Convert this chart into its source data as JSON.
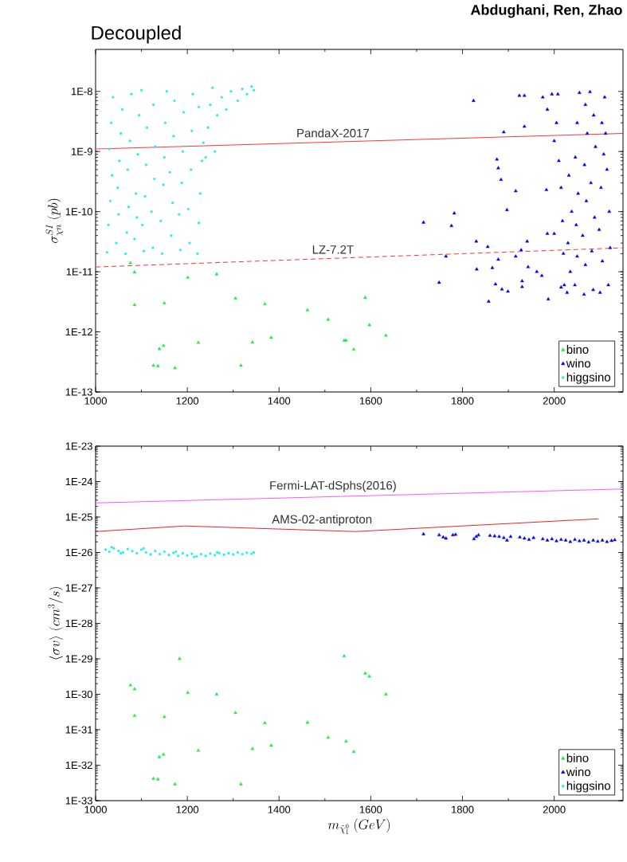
{
  "chart_data": [
    {
      "type": "scatter",
      "title": "Decoupled",
      "annotations": [
        "Abdughani, Ren, Zhao"
      ],
      "ylabel": "\\sigma^{SI}_{\\chi n}\\ (pb)",
      "xlim": [
        1000,
        2150
      ],
      "ylim": [
        1e-13,
        5e-08
      ],
      "log": "y",
      "legend": "bottom right",
      "xticks": [
        1000,
        1200,
        1400,
        1600,
        1800,
        2000
      ],
      "yticks": [
        {
          "value": 1e-13,
          "label": "1E-13"
        },
        {
          "value": 1e-12,
          "label": "1E-12"
        },
        {
          "value": 1e-11,
          "label": "1E-11"
        },
        {
          "value": 1e-10,
          "label": "1E-10"
        },
        {
          "value": 1e-09,
          "label": "1E-9"
        },
        {
          "value": 1e-08,
          "label": "1E-8"
        }
      ],
      "series": [
        {
          "name": "bino",
          "type": "scatter",
          "marker": "triangle",
          "color": "#22ee44",
          "x": [
            1076,
            1085,
            1085,
            1150,
            1201,
            1264,
            1305,
            1369,
            1462,
            1507,
            1588,
            1597,
            1633,
            1139,
            1148,
            1224,
            1342,
            1383,
            1542,
            1546,
            1563,
            1126,
            1136,
            1173,
            1317
          ],
          "values": [
            1.4e-11,
            9.8e-12,
            2.8e-12,
            3e-12,
            8e-12,
            9.1e-12,
            3.6e-12,
            2.9e-12,
            2.3e-12,
            1.6e-12,
            3.7e-12,
            1.3e-12,
            8.7e-13,
            5.2e-13,
            5.9e-13,
            6.6e-13,
            6.7e-13,
            8e-13,
            7.2e-13,
            7.2e-13,
            5.1e-13,
            2.75e-13,
            2.7e-13,
            2.5e-13,
            2.75e-13
          ]
        },
        {
          "name": "wino",
          "type": "scatter",
          "marker": "triangle",
          "color": "#0000ee",
          "x": [
            2028,
            2035,
            2030,
            2038,
            2032,
            2045,
            2050,
            2048,
            2052,
            2046,
            2050,
            2055,
            2065,
            2068,
            2062,
            2070,
            2066,
            2072,
            2068,
            2085,
            2082,
            2088,
            2080,
            2090,
            2086,
            2078,
            2100,
            2105,
            2098,
            2102,
            2108,
            2104,
            2110,
            2118,
            2122,
            2120,
            2115,
            2112,
            1975,
            1985,
            1995,
            2005,
            2000,
            2010,
            2015,
            2018,
            2020,
            2022,
            2008,
            1824,
            1924,
            1935,
            1935,
            1890,
            1875,
            1878,
            1884,
            1916,
            1897,
            1715,
            1782,
            1776,
            1983,
            1830,
            1855,
            1764,
            1941,
            1916,
            1928,
            1985,
            2000,
            1878,
            1831,
            1865,
            1943,
            1962,
            1973,
            1749,
            1872,
            1930,
            1930,
            1886,
            1899,
            1857,
            1987,
            2015
          ],
          "values": [
            4.5e-12,
            1e-11,
            3e-11,
            1e-10,
            4e-10,
            6e-12,
            1.8e-11,
            6e-11,
            2e-10,
            8e-10,
            3e-09,
            9.5e-09,
            4.2e-12,
            1.3e-11,
            4e-11,
            1.5e-10,
            6e-10,
            2e-09,
            6e-09,
            5e-12,
            2.2e-11,
            8e-11,
            3e-10,
            1.2e-09,
            4e-09,
            9.8e-09,
            4.5e-12,
            1.5e-11,
            5e-11,
            2.5e-10,
            9e-10,
            3e-09,
            8e-09,
            6e-12,
            2.5e-11,
            1e-10,
            5e-10,
            2e-09,
            8e-09,
            5e-09,
            9e-09,
            3e-09,
            1.5e-09,
            7e-10,
            2.5e-10,
            7e-11,
            2e-11,
            6e-12,
            9e-09,
            7e-09,
            8.5e-09,
            8.5e-09,
            2.6e-09,
            2.1e-09,
            7.4e-10,
            5.3e-10,
            3.4e-10,
            2.2e-10,
            1.07e-10,
            6.6e-11,
            9.4e-11,
            5.8e-11,
            2.3e-10,
            3.2e-11,
            2.6e-11,
            1.8e-11,
            3.2e-11,
            1.8e-11,
            2.3e-11,
            4.3e-11,
            4.3e-11,
            1.6e-11,
            1.1e-11,
            1.16e-11,
            1.2e-11,
            1e-11,
            8.6e-12,
            6.6e-12,
            6.2e-12,
            7e-12,
            5.6e-12,
            5.1e-12,
            4.7e-12,
            3.2e-12,
            3.5e-12,
            5.5e-12
          ]
        },
        {
          "name": "higgsino",
          "type": "scatter",
          "marker": "circle",
          "color": "#22eeee",
          "x": [
            1025,
            1028,
            1032,
            1036,
            1030,
            1034,
            1038,
            1045,
            1050,
            1048,
            1052,
            1055,
            1058,
            1065,
            1068,
            1072,
            1070,
            1075,
            1078,
            1085,
            1090,
            1088,
            1092,
            1095,
            1105,
            1102,
            1108,
            1110,
            1112,
            1100,
            1125,
            1122,
            1128,
            1130,
            1126,
            1145,
            1142,
            1148,
            1150,
            1152,
            1155,
            1165,
            1168,
            1162,
            1170,
            1172,
            1185,
            1182,
            1188,
            1190,
            1192,
            1205,
            1202,
            1208,
            1210,
            1212,
            1222,
            1225,
            1228,
            1232,
            1235,
            1225,
            1245,
            1250,
            1260,
            1265,
            1275,
            1285,
            1295,
            1310,
            1320,
            1330,
            1340,
            1345,
            1240,
            1255
          ],
          "values": [
            2.1e-11,
            6e-11,
            1.5e-10,
            4e-10,
            1.1e-09,
            3e-09,
            8e-09,
            3e-11,
            9e-11,
            2.5e-10,
            7e-10,
            2e-09,
            5e-09,
            2e-11,
            4.5e-11,
            1.2e-10,
            5e-10,
            1.5e-09,
            9e-09,
            3.5e-11,
            8e-11,
            2e-10,
            9e-10,
            4e-09,
            2.2e-11,
            6e-11,
            1.8e-10,
            6e-10,
            2.5e-09,
            1.05e-08,
            2.5e-11,
            1e-10,
            3.5e-10,
            1.2e-09,
            6e-09,
            2e-11,
            7e-11,
            2.8e-10,
            8e-10,
            3e-09,
            1e-08,
            4e-11,
            1.4e-10,
            4.5e-10,
            1.8e-09,
            7e-09,
            2.3e-11,
            9e-11,
            3e-10,
            1e-09,
            4.5e-09,
            3e-11,
            1.1e-10,
            5e-10,
            2.2e-09,
            9e-09,
            2e-11,
            6.5e-11,
            2e-10,
            7e-10,
            1.4e-09,
            5.5e-09,
            2.5e-09,
            6e-09,
            1e-09,
            4e-09,
            8e-09,
            5e-09,
            1e-08,
            7e-09,
            1.1e-08,
            9e-09,
            1.2e-08,
            1.05e-08,
            8e-10,
            1.15e-08
          ]
        },
        {
          "name": "PandaX-2017",
          "type": "line",
          "line_style": "solid",
          "color": "#ff3333",
          "x": [
            1000,
            2150
          ],
          "values": [
            1.1e-09,
            2e-09
          ]
        },
        {
          "name": "LZ-7.2T",
          "type": "line",
          "line_style": "dashed",
          "color": "#ff3333",
          "x": [
            1000,
            2150
          ],
          "values": [
            1.2e-11,
            2.5e-11
          ]
        }
      ]
    },
    {
      "type": "scatter",
      "ylabel": "\\langle\\sigma v\\rangle\\ (cm^{3}/s)",
      "xlabel": "m_{\\tilde{\\chi}^{0}_{1}}\\ (GeV)",
      "xlim": [
        1000,
        2150
      ],
      "ylim": [
        1e-33,
        1e-23
      ],
      "log": "y",
      "legend": "bottom right",
      "xticks": [
        1000,
        1200,
        1400,
        1600,
        1800,
        2000
      ],
      "yticks": [
        {
          "value": 1e-33,
          "label": "1E-33"
        },
        {
          "value": 1e-32,
          "label": "1E-32"
        },
        {
          "value": 1e-31,
          "label": "1E-31"
        },
        {
          "value": 1e-30,
          "label": "1E-30"
        },
        {
          "value": 1e-29,
          "label": "1E-29"
        },
        {
          "value": 1e-28,
          "label": "1E-28"
        },
        {
          "value": 1e-27,
          "label": "1E-27"
        },
        {
          "value": 1e-26,
          "label": "1E-26"
        },
        {
          "value": 1e-25,
          "label": "1E-25"
        },
        {
          "value": 1e-24,
          "label": "1E-24"
        },
        {
          "value": 1e-23,
          "label": "1E-23"
        }
      ],
      "series": [
        {
          "name": "bino",
          "type": "scatter",
          "marker": "triangle",
          "color": "#22ee44",
          "x": [
            1076,
            1085,
            1085,
            1150,
            1183,
            1201,
            1264,
            1305,
            1369,
            1462,
            1507,
            1542,
            1546,
            1563,
            1588,
            1597,
            1633,
            1139,
            1148,
            1224,
            1342,
            1383,
            1126,
            1136,
            1173,
            1317
          ],
          "values": [
            1.8e-30,
            1.4e-30,
            2.5e-31,
            2.3e-31,
            1e-29,
            1.1e-30,
            1e-30,
            3e-31,
            1.55e-31,
            1.6e-31,
            6e-32,
            1.2e-29,
            4.7e-32,
            2.4e-32,
            3.9e-30,
            3.2e-30,
            1e-30,
            1.7e-32,
            2e-32,
            2.6e-32,
            2.9e-32,
            3.6e-32,
            4.2e-33,
            4e-33,
            2.9e-33,
            2.9e-33
          ]
        },
        {
          "name": "wino",
          "type": "scatter",
          "marker": "triangle",
          "color": "#0000ee",
          "x": [
            1715,
            1749,
            1758,
            1764,
            1779,
            1785,
            1825,
            1830,
            1835,
            1860,
            1870,
            1880,
            1890,
            1897,
            1905,
            1925,
            1935,
            1945,
            1955,
            1975,
            1985,
            1995,
            2005,
            2015,
            2025,
            2035,
            2045,
            2055,
            2065,
            2075,
            2085,
            2095,
            2105,
            2115,
            2125,
            2132
          ],
          "values": [
            3.3e-26,
            3.1e-26,
            2.7e-26,
            2.5e-26,
            3.1e-26,
            3.2e-26,
            2.4e-26,
            2.8e-26,
            3.1e-26,
            3e-26,
            2.9e-26,
            2.8e-26,
            2.6e-26,
            2.2e-26,
            2.8e-26,
            2.7e-26,
            2.5e-26,
            2.3e-26,
            2.6e-26,
            2.4e-26,
            2.2e-26,
            2.4e-26,
            2.1e-26,
            2.3e-26,
            2.2e-26,
            2e-26,
            2.3e-26,
            2.1e-26,
            2.2e-26,
            1.95e-26,
            2.2e-26,
            2.05e-26,
            2.2e-26,
            2e-26,
            2.15e-26,
            2.25e-26
          ]
        },
        {
          "name": "higgsino",
          "type": "scatter",
          "marker": "circle",
          "color": "#22eeee",
          "x": [
            1022,
            1030,
            1040,
            1050,
            1060,
            1070,
            1080,
            1090,
            1100,
            1110,
            1120,
            1130,
            1140,
            1150,
            1160,
            1170,
            1180,
            1190,
            1200,
            1210,
            1220,
            1230,
            1240,
            1250,
            1260,
            1270,
            1280,
            1290,
            1300,
            1310,
            1320,
            1330,
            1340,
            1345,
            1035,
            1055,
            1105,
            1175,
            1215,
            1265
          ],
          "values": [
            1.2e-26,
            1.05e-26,
            1.3e-26,
            1.1e-26,
            1e-26,
            1.25e-26,
            1.1e-26,
            9.5e-27,
            1.2e-26,
            1e-26,
            8.8e-27,
            1.1e-26,
            9e-27,
            1.05e-26,
            8.5e-27,
            9.8e-27,
            8e-27,
            9.5e-27,
            8.2e-27,
            9.2e-27,
            7.8e-27,
            9e-27,
            8e-27,
            9.3e-27,
            8.4e-27,
            9.6e-27,
            8.6e-27,
            9.5e-27,
            8.8e-27,
            1e-26,
            9e-27,
            9.8e-27,
            9.2e-27,
            1e-26,
            1.4e-26,
            9.5e-27,
            1.3e-26,
            1.05e-26,
            7.5e-27,
            1e-26
          ]
        },
        {
          "name": "Fermi-LAT-dSphs(2016)",
          "type": "line",
          "line_style": "solid",
          "color": "#ff55ff",
          "x": [
            1000,
            2150
          ],
          "values": [
            2.5e-25,
            6.2e-25
          ]
        },
        {
          "name": "AMS-02-antiproton",
          "type": "line",
          "line_style": "solid",
          "color": "#ee2222",
          "x": [
            1000,
            1194,
            1567,
            2097
          ],
          "values": [
            3.9e-26,
            5.6e-26,
            3.9e-26,
            8.9e-26
          ]
        }
      ]
    }
  ]
}
